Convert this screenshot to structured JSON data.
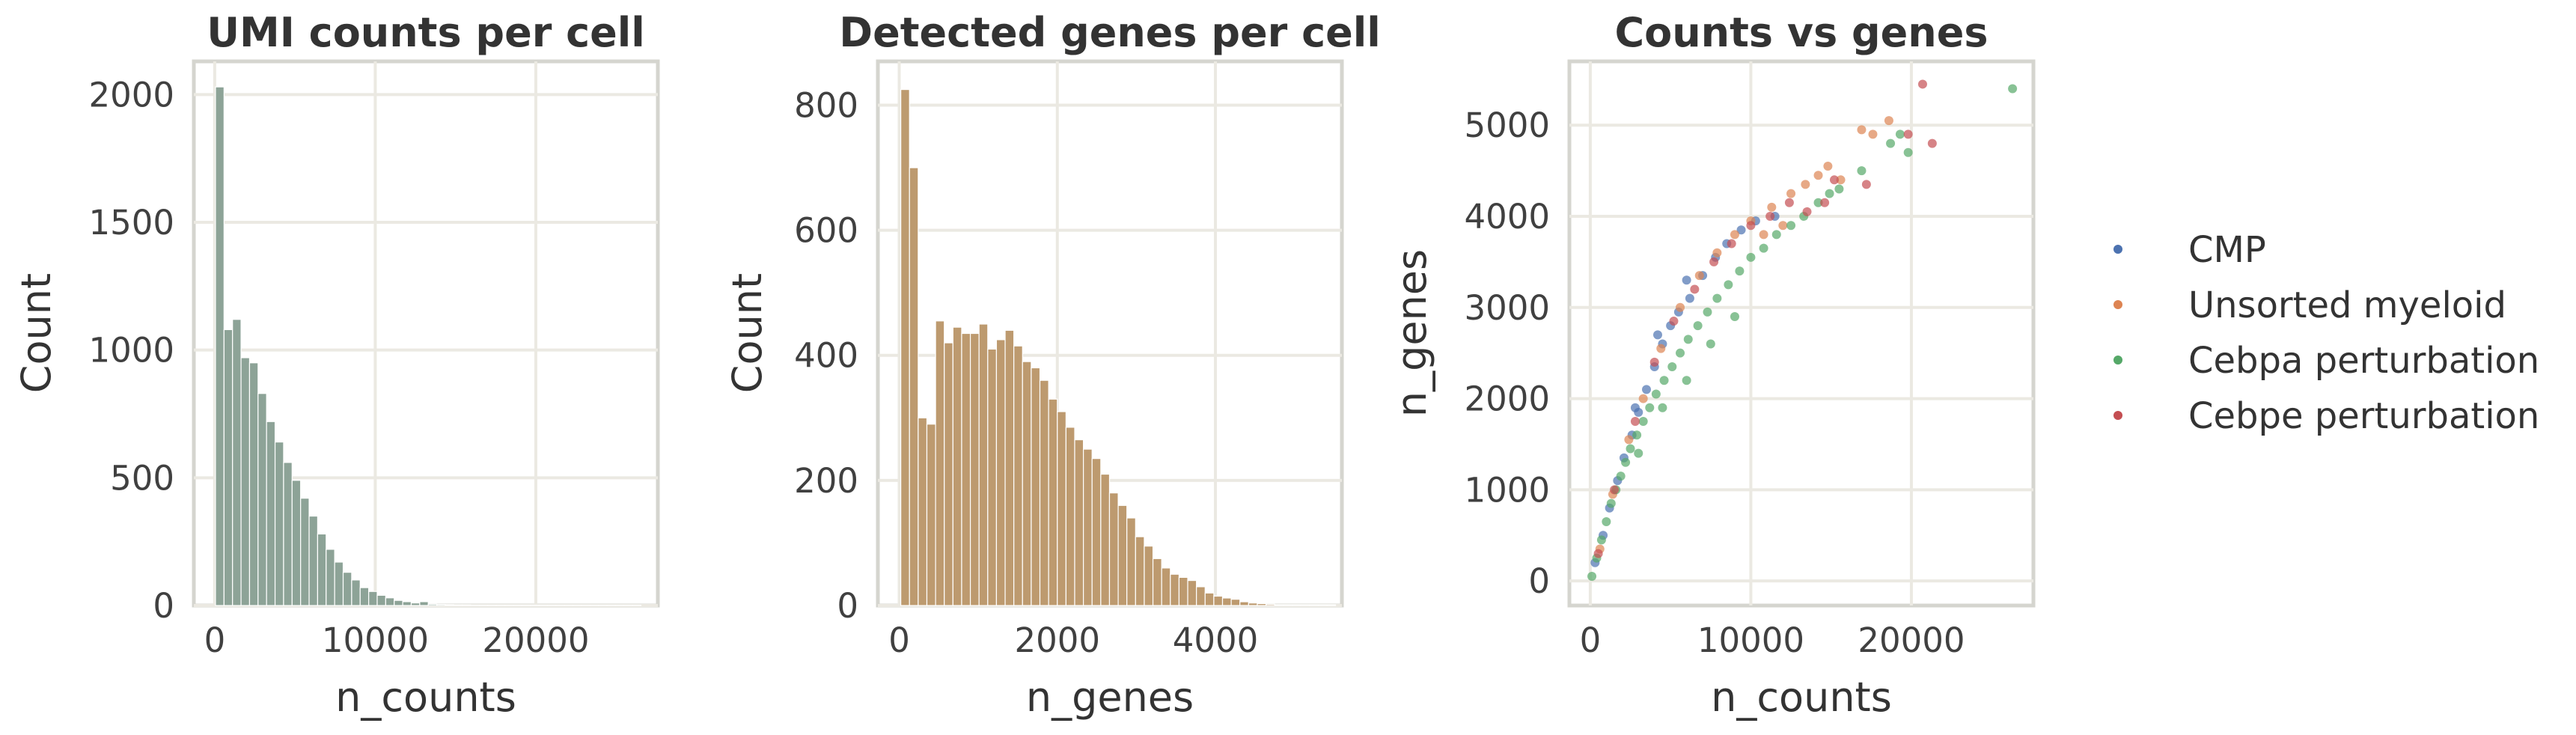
{
  "chart_data": [
    {
      "type": "bar",
      "title": "UMI counts per cell",
      "xlabel": "n_counts",
      "ylabel": "Count",
      "xlim": [
        -1300,
        27600
      ],
      "ylim": [
        0,
        2130
      ],
      "xticks": [
        0,
        10000,
        20000
      ],
      "yticks": [
        0,
        500,
        1000,
        1500,
        2000
      ],
      "grid": true,
      "color": "#8da397",
      "bin_width": 530,
      "bin_start": 50,
      "values": [
        2030,
        1080,
        1120,
        970,
        950,
        830,
        720,
        640,
        560,
        490,
        420,
        350,
        280,
        220,
        170,
        130,
        100,
        70,
        55,
        40,
        30,
        20,
        15,
        10,
        15,
        5,
        4,
        3,
        2,
        2,
        1,
        1,
        1,
        1,
        1,
        1,
        1,
        1,
        1,
        1,
        1,
        1,
        1,
        1,
        1,
        1,
        1,
        1,
        1,
        1
      ]
    },
    {
      "type": "bar",
      "title": "Detected genes per cell",
      "xlabel": "n_genes",
      "ylabel": "Count",
      "xlim": [
        -270,
        5600
      ],
      "ylim": [
        0,
        870
      ],
      "xticks": [
        0,
        2000,
        4000
      ],
      "yticks": [
        0,
        200,
        400,
        600,
        800
      ],
      "grid": true,
      "color": "#bd9a6f",
      "bin_width": 110,
      "bin_start": 20,
      "values": [
        825,
        700,
        300,
        290,
        455,
        420,
        445,
        435,
        435,
        450,
        410,
        425,
        440,
        415,
        390,
        380,
        360,
        330,
        310,
        285,
        265,
        250,
        235,
        210,
        180,
        160,
        140,
        110,
        95,
        75,
        60,
        50,
        45,
        40,
        30,
        20,
        15,
        12,
        10,
        6,
        4,
        3,
        2,
        1,
        1,
        1,
        1,
        1,
        1,
        1
      ]
    },
    {
      "type": "scatter",
      "title": "Counts vs genes",
      "xlabel": "n_counts",
      "ylabel": "n_genes",
      "xlim": [
        -1300,
        27600
      ],
      "ylim": [
        -270,
        5700
      ],
      "xticks": [
        0,
        10000,
        20000
      ],
      "yticks": [
        0,
        1000,
        2000,
        3000,
        4000,
        5000
      ],
      "grid": true,
      "legend_position": "center-right",
      "series": [
        {
          "name": "CMP",
          "color": "#4c72b0",
          "points": [
            [
              300,
              200
            ],
            [
              800,
              500
            ],
            [
              1200,
              800
            ],
            [
              1700,
              1100
            ],
            [
              2100,
              1350
            ],
            [
              2600,
              1600
            ],
            [
              3000,
              1850
            ],
            [
              3500,
              2100
            ],
            [
              4000,
              2350
            ],
            [
              4500,
              2600
            ],
            [
              5000,
              2800
            ],
            [
              5500,
              2950
            ],
            [
              6200,
              3100
            ],
            [
              7000,
              3350
            ],
            [
              7800,
              3550
            ],
            [
              8500,
              3700
            ],
            [
              9400,
              3850
            ],
            [
              10300,
              3950
            ],
            [
              11500,
              4000
            ],
            [
              6000,
              3300
            ],
            [
              4200,
              2700
            ],
            [
              2800,
              1900
            ]
          ]
        },
        {
          "name": "Unsorted myeloid",
          "color": "#dd8452",
          "points": [
            [
              600,
              350
            ],
            [
              1400,
              950
            ],
            [
              2400,
              1550
            ],
            [
              3300,
              2000
            ],
            [
              4400,
              2550
            ],
            [
              5600,
              3000
            ],
            [
              6800,
              3350
            ],
            [
              7900,
              3600
            ],
            [
              9000,
              3800
            ],
            [
              10000,
              3950
            ],
            [
              11300,
              4100
            ],
            [
              12500,
              4250
            ],
            [
              13400,
              4350
            ],
            [
              14200,
              4450
            ],
            [
              14800,
              4550
            ],
            [
              15600,
              4400
            ],
            [
              16900,
              4950
            ],
            [
              17600,
              4900
            ],
            [
              18600,
              5050
            ],
            [
              12000,
              3900
            ],
            [
              10800,
              3800
            ]
          ]
        },
        {
          "name": "Cebpa perturbation",
          "color": "#55a868",
          "points": [
            [
              100,
              50
            ],
            [
              400,
              250
            ],
            [
              700,
              450
            ],
            [
              1000,
              650
            ],
            [
              1300,
              850
            ],
            [
              1600,
              1000
            ],
            [
              1900,
              1150
            ],
            [
              2200,
              1300
            ],
            [
              2500,
              1450
            ],
            [
              2900,
              1600
            ],
            [
              3300,
              1750
            ],
            [
              3700,
              1900
            ],
            [
              4100,
              2050
            ],
            [
              4600,
              2200
            ],
            [
              5100,
              2350
            ],
            [
              5600,
              2500
            ],
            [
              6100,
              2650
            ],
            [
              6700,
              2800
            ],
            [
              7300,
              2950
            ],
            [
              7900,
              3100
            ],
            [
              8600,
              3250
            ],
            [
              9300,
              3400
            ],
            [
              10000,
              3550
            ],
            [
              10800,
              3650
            ],
            [
              11600,
              3800
            ],
            [
              12500,
              3900
            ],
            [
              13300,
              4000
            ],
            [
              14200,
              4150
            ],
            [
              14900,
              4250
            ],
            [
              15500,
              4300
            ],
            [
              16900,
              4500
            ],
            [
              18700,
              4800
            ],
            [
              19300,
              4900
            ],
            [
              19800,
              4700
            ],
            [
              26300,
              5400
            ],
            [
              3000,
              1400
            ],
            [
              4500,
              1900
            ],
            [
              6000,
              2200
            ],
            [
              7500,
              2600
            ],
            [
              9000,
              2900
            ]
          ]
        },
        {
          "name": "Cebpe perturbation",
          "color": "#c44e52",
          "points": [
            [
              500,
              300
            ],
            [
              1500,
              1000
            ],
            [
              2800,
              1750
            ],
            [
              4000,
              2400
            ],
            [
              5200,
              2850
            ],
            [
              6500,
              3200
            ],
            [
              7700,
              3500
            ],
            [
              8800,
              3700
            ],
            [
              10000,
              3900
            ],
            [
              11200,
              4000
            ],
            [
              12400,
              4150
            ],
            [
              13500,
              4050
            ],
            [
              14600,
              4150
            ],
            [
              15200,
              4400
            ],
            [
              17200,
              4350
            ],
            [
              19800,
              4900
            ],
            [
              20700,
              5450
            ],
            [
              21300,
              4800
            ]
          ]
        }
      ]
    }
  ]
}
